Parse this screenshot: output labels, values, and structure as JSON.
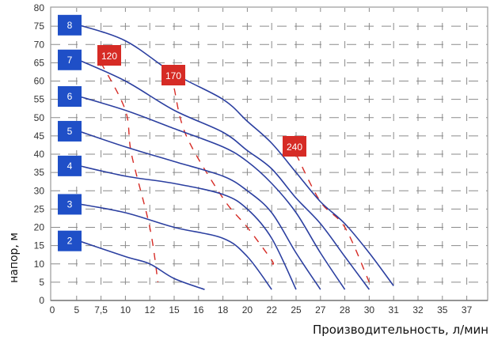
{
  "chart_data": {
    "type": "line",
    "title": "",
    "xlabel": "Производительность, л/мин",
    "ylabel": "напор, м",
    "x_tick_labels": [
      "0",
      "5",
      "7,5",
      "10",
      "12",
      "15",
      "16",
      "18",
      "20",
      "22",
      "25",
      "27",
      "28",
      "30",
      "31",
      "32",
      "35",
      "37"
    ],
    "y_tick_labels": [
      "0",
      "5",
      "10",
      "15",
      "20",
      "25",
      "30",
      "35",
      "40",
      "45",
      "50",
      "55",
      "60",
      "65",
      "70",
      "75",
      "80"
    ],
    "ylim": [
      0,
      80
    ],
    "grid": true,
    "grid_style": "dashed",
    "series": [
      {
        "name": "2",
        "color": "#2b3fa0",
        "points": [
          [
            5,
            16.5
          ],
          [
            10,
            12
          ],
          [
            12,
            10
          ],
          [
            15,
            6
          ],
          [
            16.5,
            3
          ]
        ]
      },
      {
        "name": "3",
        "color": "#2b3fa0",
        "points": [
          [
            5,
            26.5
          ],
          [
            10,
            24
          ],
          [
            15,
            20
          ],
          [
            18,
            17
          ],
          [
            20,
            12
          ],
          [
            22,
            3
          ]
        ]
      },
      {
        "name": "4",
        "color": "#2b3fa0",
        "points": [
          [
            5,
            37
          ],
          [
            10,
            34
          ],
          [
            15,
            32
          ],
          [
            18,
            29
          ],
          [
            20,
            25
          ],
          [
            22,
            17
          ],
          [
            25,
            3
          ]
        ]
      },
      {
        "name": "5",
        "color": "#2b3fa0",
        "points": [
          [
            5,
            46.5
          ],
          [
            10,
            42
          ],
          [
            15,
            38
          ],
          [
            18,
            34
          ],
          [
            20,
            30
          ],
          [
            22,
            24
          ],
          [
            25,
            13
          ],
          [
            27,
            3
          ]
        ]
      },
      {
        "name": "6",
        "color": "#2b3fa0",
        "points": [
          [
            5,
            56
          ],
          [
            10,
            52
          ],
          [
            15,
            47
          ],
          [
            18,
            42
          ],
          [
            20,
            38
          ],
          [
            22,
            32
          ],
          [
            25,
            24
          ],
          [
            27,
            13
          ],
          [
            28,
            3
          ]
        ]
      },
      {
        "name": "7",
        "color": "#2b3fa0",
        "points": [
          [
            5,
            66
          ],
          [
            10,
            60
          ],
          [
            15,
            52
          ],
          [
            18,
            46
          ],
          [
            20,
            41
          ],
          [
            22,
            36
          ],
          [
            25,
            28
          ],
          [
            27,
            21
          ],
          [
            28,
            12
          ],
          [
            30,
            3
          ]
        ]
      },
      {
        "name": "8",
        "color": "#2b3fa0",
        "points": [
          [
            5,
            75.5
          ],
          [
            10,
            71
          ],
          [
            15,
            62
          ],
          [
            18,
            55
          ],
          [
            20,
            49
          ],
          [
            22,
            43
          ],
          [
            25,
            35
          ],
          [
            27,
            27
          ],
          [
            28,
            21
          ],
          [
            30,
            13
          ],
          [
            31,
            4
          ]
        ]
      }
    ],
    "efficiency_lines": [
      {
        "label": "120",
        "color": "#d62b25",
        "style": "dashed",
        "points": [
          [
            7.5,
            65
          ],
          [
            10,
            52
          ],
          [
            10.5,
            40
          ],
          [
            12,
            20
          ],
          [
            13,
            5
          ]
        ]
      },
      {
        "label": "170",
        "color": "#d62b25",
        "style": "dashed",
        "points": [
          [
            15,
            58
          ],
          [
            15.5,
            45
          ],
          [
            18,
            28
          ],
          [
            20,
            20
          ],
          [
            22,
            11
          ],
          [
            22,
            10
          ]
        ]
      },
      {
        "label": "240",
        "color": "#d62b25",
        "style": "dashed",
        "points": [
          [
            25,
            40
          ],
          [
            27,
            27
          ],
          [
            28,
            20
          ],
          [
            30,
            5
          ]
        ]
      }
    ],
    "legend": {
      "curve_badges": [
        "8",
        "7",
        "6",
        "5",
        "4",
        "3",
        "2"
      ],
      "badge_color": "#1f4fc7",
      "efficiency_badges": [
        "120",
        "170",
        "240"
      ],
      "efficiency_badge_color": "#d62b25"
    }
  }
}
